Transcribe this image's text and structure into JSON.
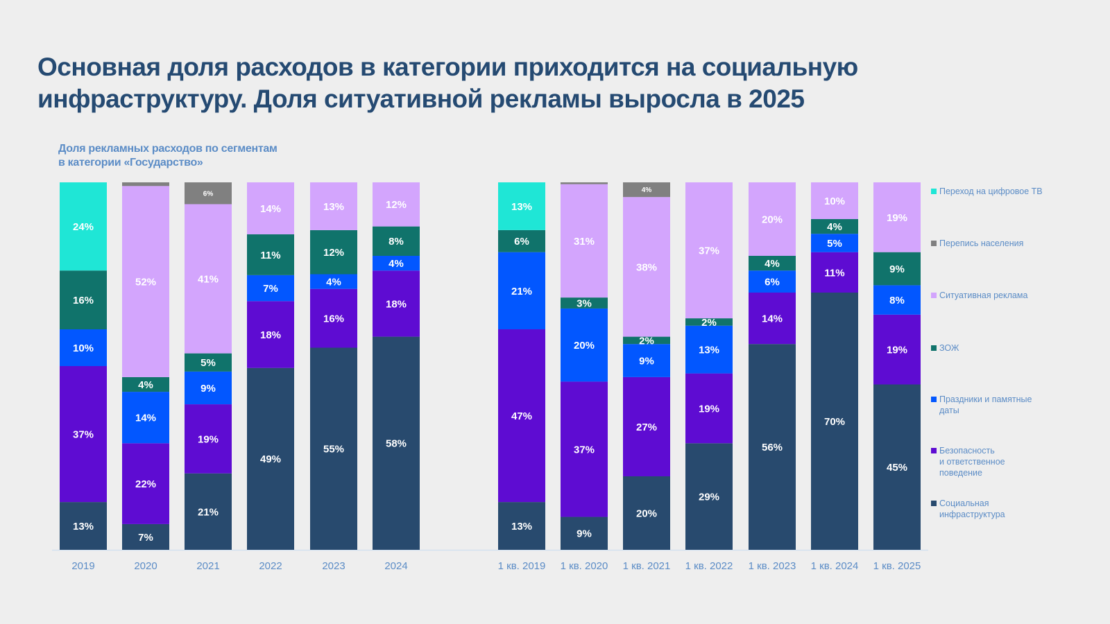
{
  "title_lines": [
    "Основная доля расходов в категории приходится на социальную",
    "инфраструктуру. Доля ситуативной рекламы выросла в 2025"
  ],
  "subtitle_lines": [
    "Доля рекламных расходов по сегментам",
    "в категории «Государство»"
  ],
  "chart_data": {
    "type": "bar",
    "stacked": true,
    "normalized": true,
    "title": "Доля рекламных расходов по сегментам в категории «Государство»",
    "xlabel": "",
    "ylabel": "",
    "ylim": [
      0,
      100
    ],
    "unit": "%",
    "grid": false,
    "legend_position": "right",
    "groups": [
      {
        "name": "annual",
        "categories": [
          "2019",
          "2020",
          "2021",
          "2022",
          "2023",
          "2024"
        ]
      },
      {
        "name": "q1",
        "categories": [
          "1 кв. 2019",
          "1 кв. 2020",
          "1 кв. 2021",
          "1 кв. 2022",
          "1 кв. 2023",
          "1 кв. 2024",
          "1 кв. 2025"
        ]
      }
    ],
    "categories": [
      "2019",
      "2020",
      "2021",
      "2022",
      "2023",
      "2024",
      "1 кв. 2019",
      "1 кв. 2020",
      "1 кв. 2021",
      "1 кв. 2022",
      "1 кв. 2023",
      "1 кв. 2024",
      "1 кв. 2025"
    ],
    "series": [
      {
        "name": "Социальная инфраструктура",
        "color": "#284a6e",
        "values": [
          13,
          7,
          21,
          49,
          55,
          58,
          13,
          9,
          20,
          29,
          56,
          70,
          45
        ]
      },
      {
        "name": "Безопасность и ответственное поведение",
        "color": "#5e0cd2",
        "values": [
          37,
          22,
          19,
          18,
          16,
          18,
          47,
          37,
          27,
          19,
          14,
          11,
          19
        ]
      },
      {
        "name": "Праздники и памятные даты",
        "color": "#0257ff",
        "values": [
          10,
          14,
          9,
          7,
          4,
          4,
          21,
          20,
          9,
          13,
          6,
          5,
          8
        ]
      },
      {
        "name": "ЗОЖ",
        "color": "#10736b",
        "values": [
          16,
          4,
          5,
          11,
          12,
          8,
          6,
          3,
          2,
          2,
          4,
          4,
          9
        ]
      },
      {
        "name": "Ситуативная реклама",
        "color": "#d3a5fd",
        "values": [
          0,
          52,
          41,
          14,
          13,
          12,
          0,
          31,
          38,
          37,
          20,
          10,
          19
        ]
      },
      {
        "name": "Перепись населения",
        "color": "#808080",
        "values": [
          0,
          1,
          6,
          0,
          0,
          0,
          0,
          0.5,
          4,
          0,
          0,
          0,
          0
        ],
        "labels_hidden_for": [
          "2020",
          "1 кв. 2020"
        ]
      },
      {
        "name": "Переход на цифровое ТВ",
        "color": "#1fe6d6",
        "values": [
          24,
          0,
          0,
          0,
          0,
          0,
          13,
          0,
          0,
          0,
          0,
          0,
          0
        ]
      }
    ],
    "legend": [
      {
        "label": "Переход на цифровое ТВ",
        "color": "#1fe6d6"
      },
      {
        "label": "Перепись населения",
        "color": "#808080"
      },
      {
        "label": "Ситуативная реклама",
        "color": "#d3a5fd"
      },
      {
        "label": "ЗОЖ",
        "color": "#10736b"
      },
      {
        "label": "Праздники и памятные\nдаты",
        "color": "#0257ff"
      },
      {
        "label": "Безопасность\nи ответственное\nповедение",
        "color": "#5e0cd2"
      },
      {
        "label": "Социальная\nинфраструктура",
        "color": "#284a6e"
      }
    ]
  }
}
